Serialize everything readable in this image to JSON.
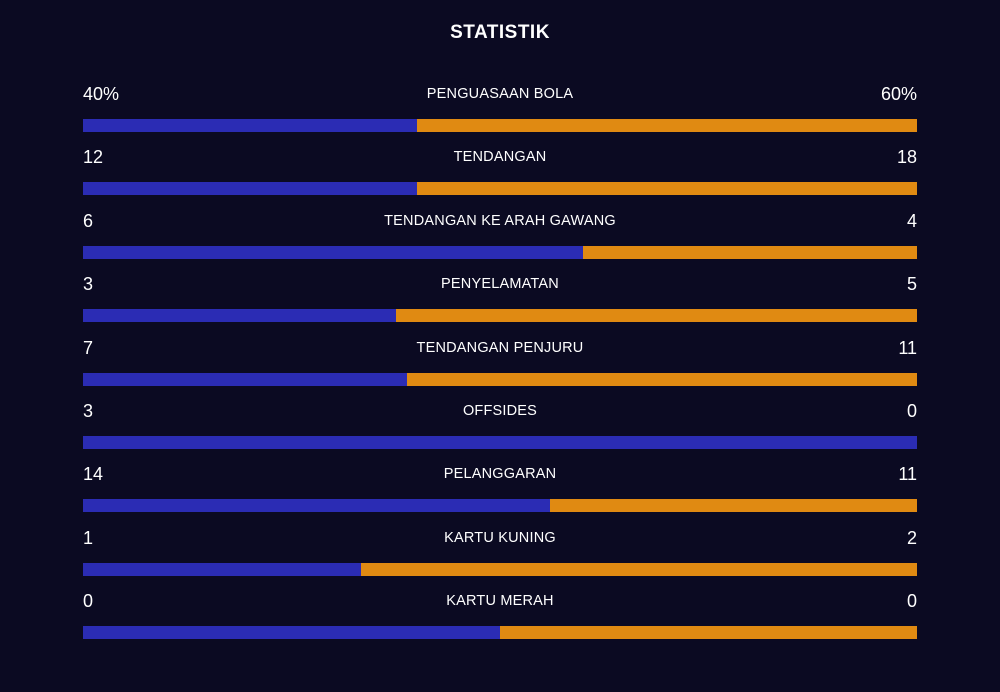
{
  "title": "STATISTIK",
  "colors": {
    "background": "#0b0a22",
    "home": "#2b2cb4",
    "away": "#e08a12"
  },
  "stats": [
    {
      "label": "PENGUASAAN BOLA",
      "home": "40%",
      "away": "60%",
      "home_share": 0.4
    },
    {
      "label": "TENDANGAN",
      "home": "12",
      "away": "18",
      "home_share": 0.4
    },
    {
      "label": "TENDANGAN KE ARAH GAWANG",
      "home": "6",
      "away": "4",
      "home_share": 0.6
    },
    {
      "label": "PENYELAMATAN",
      "home": "3",
      "away": "5",
      "home_share": 0.375
    },
    {
      "label": "TENDANGAN PENJURU",
      "home": "7",
      "away": "11",
      "home_share": 0.389
    },
    {
      "label": "OFFSIDES",
      "home": "3",
      "away": "0",
      "home_share": 1.0
    },
    {
      "label": "PELANGGARAN",
      "home": "14",
      "away": "11",
      "home_share": 0.56
    },
    {
      "label": "KARTU KUNING",
      "home": "1",
      "away": "2",
      "home_share": 0.333
    },
    {
      "label": "KARTU MERAH",
      "home": "0",
      "away": "0",
      "home_share": 0.5
    }
  ]
}
